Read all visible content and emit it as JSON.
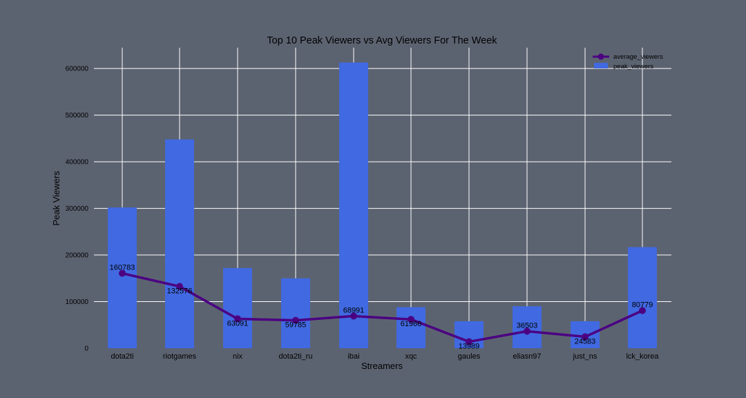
{
  "chart_data": {
    "type": "bar",
    "title": "Top 10 Peak Viewers vs Avg Viewers For The Week",
    "xlabel": "Streamers",
    "ylabel": "Peak Viewers",
    "categories": [
      "dota2ti",
      "riotgames",
      "nix",
      "dota2ti_ru",
      "ibai",
      "xqc",
      "gaules",
      "eliasn97",
      "just_ns",
      "lck_korea"
    ],
    "series": [
      {
        "name": "peak_viewers",
        "type": "bar",
        "color": "#4169e1",
        "values": [
          302000,
          448000,
          172000,
          150000,
          613000,
          88000,
          58000,
          90000,
          58000,
          217000
        ]
      },
      {
        "name": "average_viewers",
        "type": "line",
        "color": "#4b0082",
        "values": [
          160783,
          132576,
          63091,
          59785,
          68991,
          61966,
          13989,
          36503,
          24583,
          80779
        ],
        "labels": [
          "160783",
          "132576",
          "63091",
          "59785",
          "68991",
          "61966",
          "13989",
          "36503",
          "24583",
          "80779"
        ]
      }
    ],
    "yticks": [
      0,
      100000,
      200000,
      300000,
      400000,
      500000,
      600000
    ],
    "ytick_labels": [
      "0",
      "100000",
      "200000",
      "300000",
      "400000",
      "500000",
      "600000"
    ],
    "ylim": [
      0,
      643000
    ],
    "grid": true,
    "legend_position": "top-right",
    "background": "#5c6370",
    "grid_color": "#ffffff"
  }
}
